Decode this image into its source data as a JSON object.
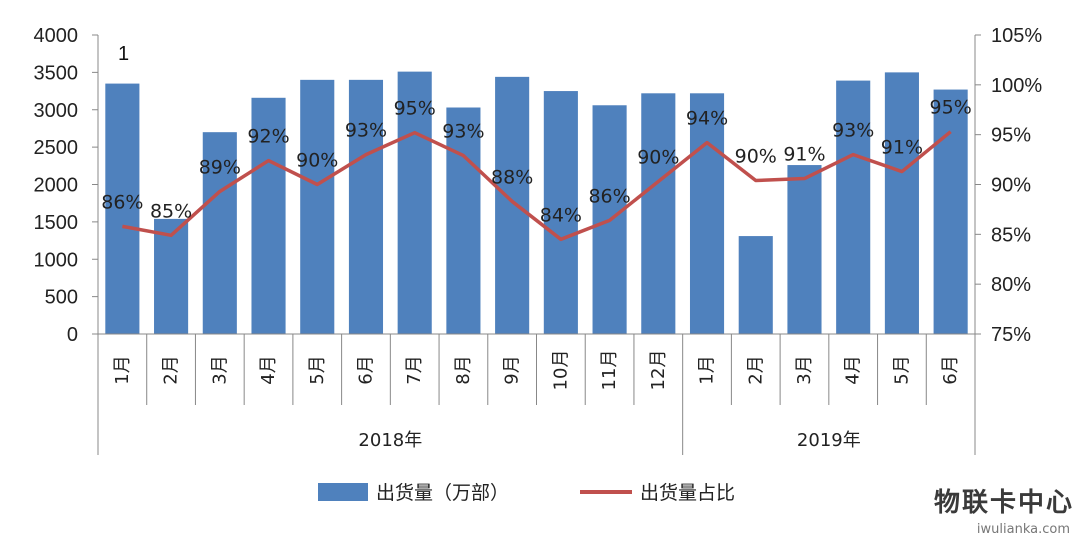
{
  "chart_data": {
    "type": "bar",
    "categories": [
      "1月",
      "2月",
      "3月",
      "4月",
      "5月",
      "6月",
      "7月",
      "8月",
      "9月",
      "10月",
      "11月",
      "12月",
      "1月",
      "2月",
      "3月",
      "4月",
      "5月",
      "6月"
    ],
    "groups": [
      {
        "label": "2018年",
        "count": 12
      },
      {
        "label": "2019年",
        "count": 6
      }
    ],
    "series": [
      {
        "name": "出货量（万部）",
        "type": "bar",
        "axis": "left",
        "color": "#4f81bd",
        "values": [
          3350,
          1540,
          2700,
          3160,
          3400,
          3400,
          3510,
          3030,
          3440,
          3250,
          3060,
          3220,
          3220,
          1310,
          2260,
          3390,
          3500,
          3270
        ]
      },
      {
        "name": "出货量占比",
        "type": "line",
        "axis": "right",
        "color": "#c0504d",
        "values": [
          85.8,
          84.9,
          89.3,
          92.4,
          90.0,
          93.0,
          95.2,
          92.9,
          88.3,
          84.5,
          86.4,
          90.3,
          94.2,
          90.4,
          90.6,
          93.0,
          91.3,
          95.3
        ],
        "labels": [
          "86%",
          "85%",
          "89%",
          "92%",
          "90%",
          "93%",
          "95%",
          "93%",
          "88%",
          "84%",
          "86%",
          "90%",
          "94%",
          "90%",
          "91%",
          "93%",
          "91%",
          "95%"
        ]
      }
    ],
    "y_left": {
      "min": 0,
      "max": 4000,
      "step": 500,
      "ticks": [
        "0",
        "500",
        "1000",
        "1500",
        "2000",
        "2500",
        "3000",
        "3500",
        "4000"
      ]
    },
    "y_right": {
      "min": 75,
      "max": 105,
      "step": 5,
      "ticks": [
        "75%",
        "80%",
        "85%",
        "90%",
        "95%",
        "100%",
        "105%"
      ]
    },
    "annotation": "1",
    "legend": {
      "position": "bottom",
      "items": [
        "出货量（万部）",
        "出货量占比"
      ]
    },
    "grid": false
  },
  "watermark": {
    "main": "物联卡中心",
    "sub": "iwulianka.com"
  }
}
